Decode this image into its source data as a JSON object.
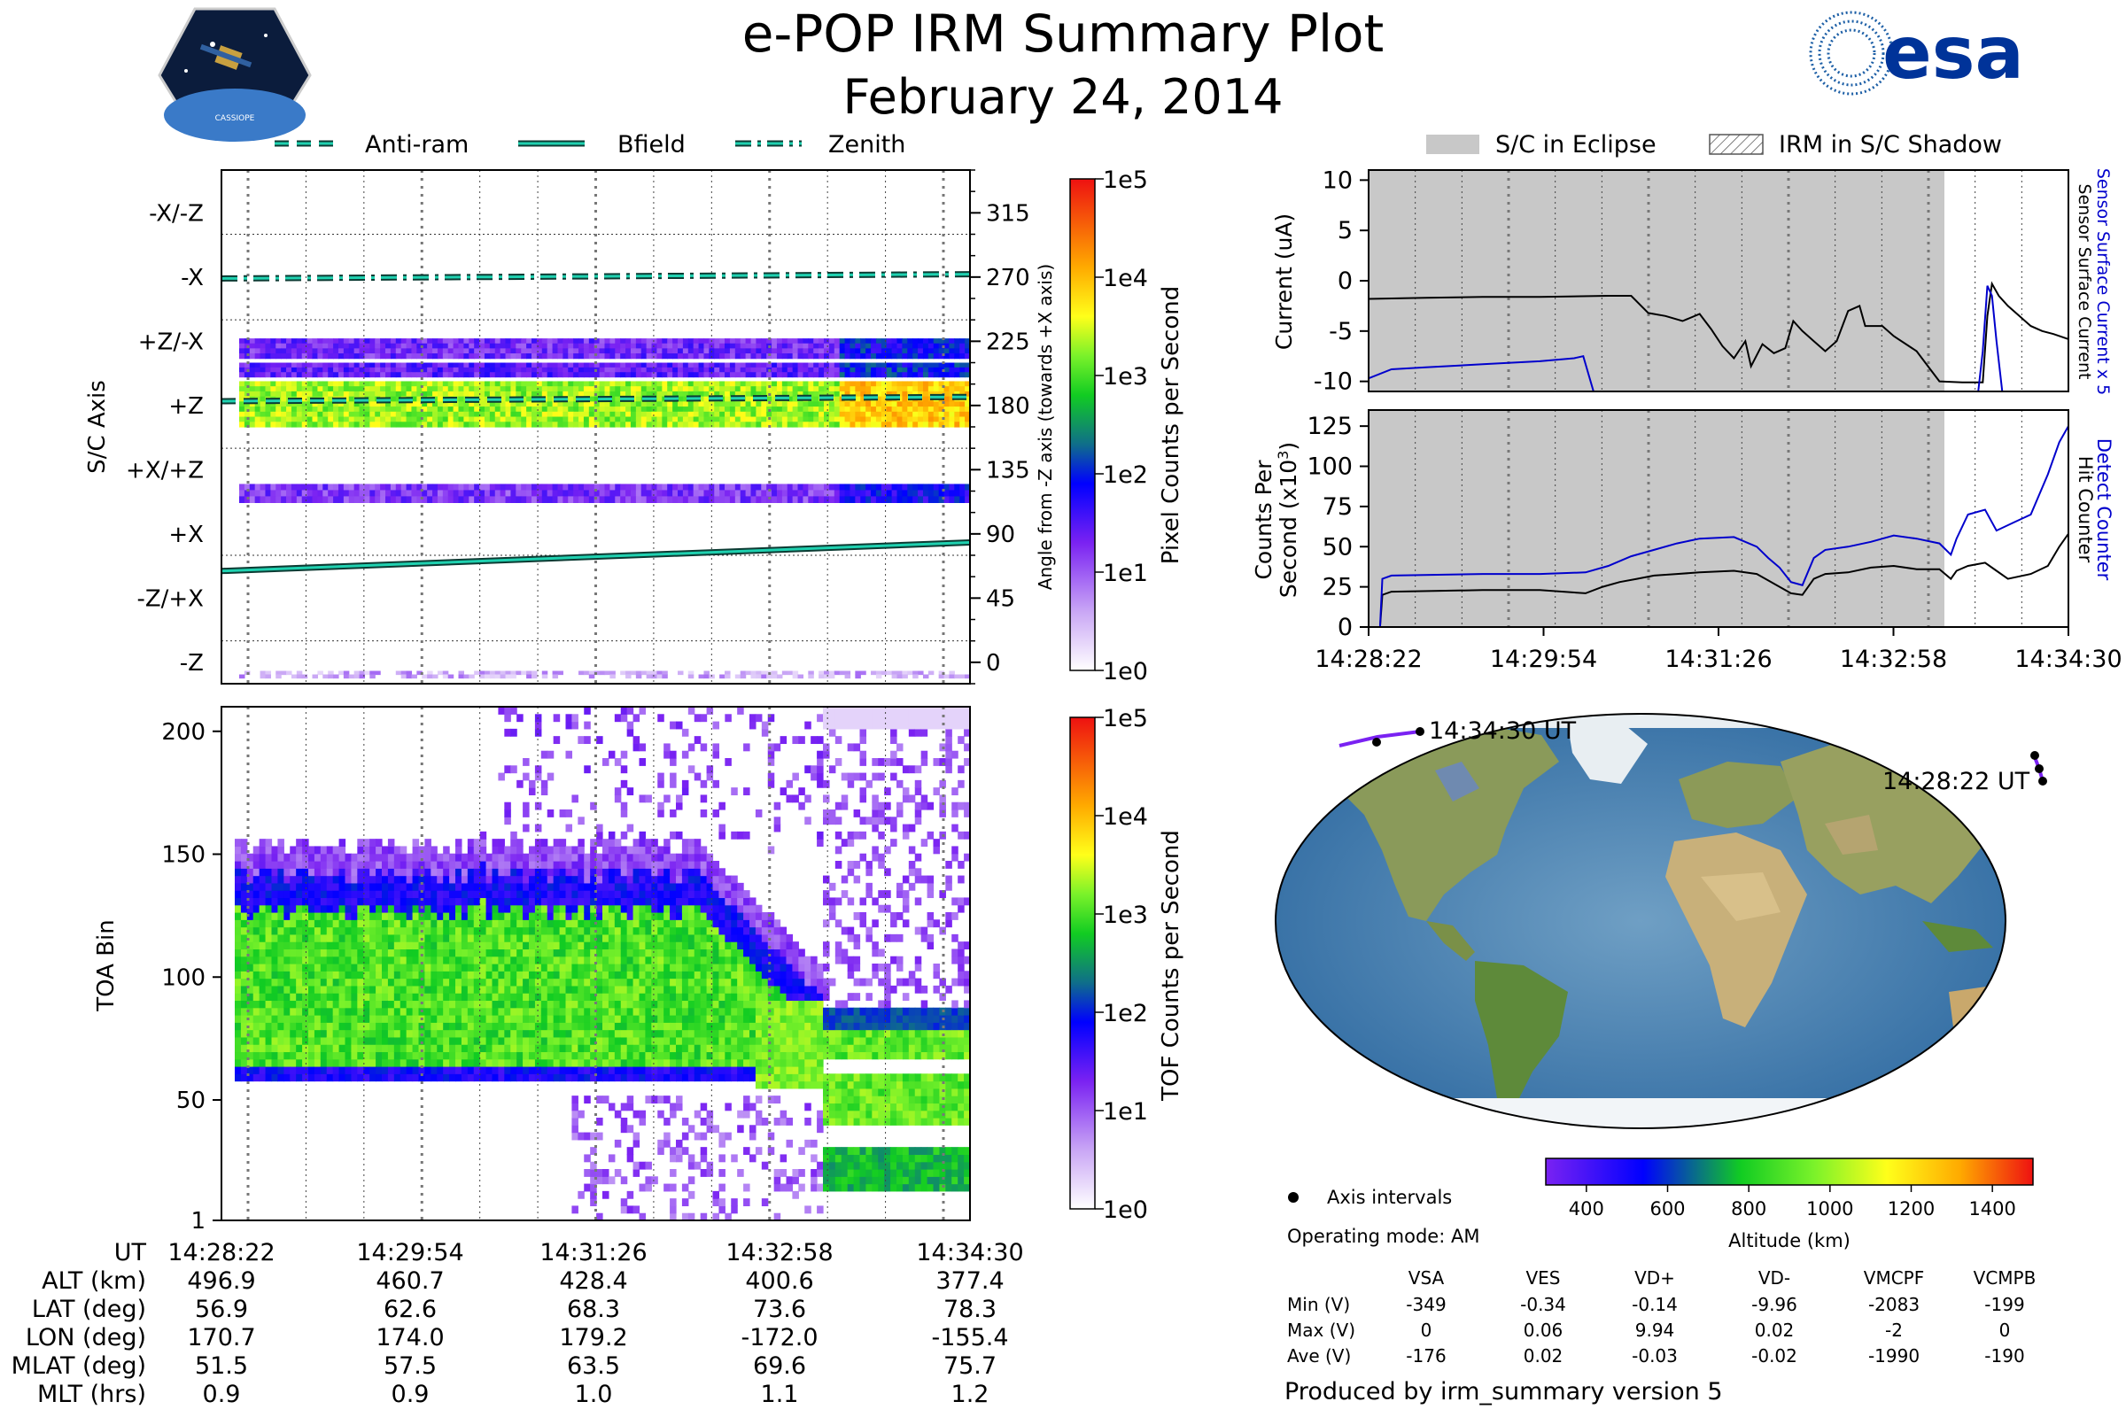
{
  "header": {
    "title": "e-POP IRM Summary Plot",
    "date": "February 24, 2014",
    "mission_badge_text": "CASSIOPE",
    "agency_logo_text": "esa"
  },
  "legends": {
    "lines": [
      "Anti-ram",
      "Bfield",
      "Zenith"
    ],
    "shading": [
      "S/C in Eclipse",
      "IRM in S/C Shadow"
    ],
    "map": "Axis intervals",
    "line_color": "#1fd1b0"
  },
  "time_ticks": [
    "14:28:22",
    "14:29:54",
    "14:31:26",
    "14:32:58",
    "14:34:30"
  ],
  "chart_data": [
    {
      "type": "heatmap",
      "name": "pixel-panel",
      "ylabel": "S/C Axis",
      "ylabel_right": "Angle from -Z axis (towards +X axis)",
      "left_ticks": [
        "-X/-Z",
        "-X",
        "+Z/-X",
        "+Z",
        "+X/+Z",
        "+X",
        "-Z/+X",
        "-Z"
      ],
      "right_ticks": [
        "315",
        "270",
        "225",
        "180",
        "135",
        "90",
        "45",
        "0"
      ],
      "ylim": [
        -15,
        345
      ],
      "bands": [
        {
          "angle_min": 165,
          "angle_max": 197,
          "level": 3.3
        },
        {
          "angle_min": 200,
          "angle_max": 210,
          "level": 1.4
        },
        {
          "angle_min": 213,
          "angle_max": 227,
          "level": 1.3
        },
        {
          "angle_min": 112,
          "angle_max": 125,
          "level": 1.2
        },
        {
          "angle_min": -11,
          "angle_max": -6,
          "level": 0.6
        }
      ],
      "lines": [
        {
          "name": "Zenith",
          "style": "dashdot",
          "values": [
            269,
            272
          ]
        },
        {
          "name": "Anti-ram",
          "style": "dashed",
          "values": [
            183,
            186
          ]
        },
        {
          "name": "Bfield",
          "style": "solid",
          "values": [
            64,
            84
          ]
        }
      ],
      "colorbar": {
        "label": "Pixel Counts per Second",
        "ticks": [
          "1e0",
          "1e1",
          "1e2",
          "1e3",
          "1e4",
          "1e5"
        ]
      }
    },
    {
      "type": "heatmap",
      "name": "toa-panel",
      "ylabel": "TOA Bin",
      "y_ticks": [
        "1",
        "50",
        "100",
        "150",
        "200"
      ],
      "ylim": [
        1,
        210
      ],
      "colorbar": {
        "label": "TOF Counts per Second",
        "ticks": [
          "1e0",
          "1e1",
          "1e2",
          "1e3",
          "1e4",
          "1e5"
        ]
      }
    },
    {
      "type": "line",
      "name": "current-panel",
      "ylabel": "Current (uA)",
      "right_label_1": "Sensor Surface Current x 5",
      "right_label_2": "Sensor Surface Current",
      "y_ticks": [
        "10",
        "5",
        "0",
        "-5",
        "-10"
      ],
      "ylim": [
        -11,
        11
      ],
      "x_minutes": [
        0,
        6.13
      ],
      "series": [
        {
          "name": "Sensor Surface Current",
          "color": "#000000",
          "points": [
            [
              0,
              -1.8
            ],
            [
              0.5,
              -1.7
            ],
            [
              1,
              -1.6
            ],
            [
              1.5,
              -1.6
            ],
            [
              2.1,
              -1.5
            ],
            [
              2.3,
              -1.5
            ],
            [
              2.45,
              -3.2
            ],
            [
              2.6,
              -3.5
            ],
            [
              2.75,
              -4.0
            ],
            [
              2.9,
              -3.3
            ],
            [
              3.0,
              -4.8
            ],
            [
              3.1,
              -6.5
            ],
            [
              3.2,
              -7.7
            ],
            [
              3.3,
              -6.0
            ],
            [
              3.35,
              -8.5
            ],
            [
              3.45,
              -6.3
            ],
            [
              3.55,
              -7.2
            ],
            [
              3.65,
              -6.7
            ],
            [
              3.72,
              -4.0
            ],
            [
              3.8,
              -5.0
            ],
            [
              3.9,
              -6.0
            ],
            [
              4.0,
              -7.0
            ],
            [
              4.1,
              -6.0
            ],
            [
              4.2,
              -3.0
            ],
            [
              4.3,
              -2.5
            ],
            [
              4.35,
              -4.5
            ],
            [
              4.5,
              -4.5
            ],
            [
              4.6,
              -5.5
            ],
            [
              4.8,
              -7.0
            ],
            [
              4.9,
              -8.5
            ],
            [
              5.0,
              -10.0
            ],
            [
              5.2,
              -10.1
            ],
            [
              5.38,
              -10.1
            ],
            [
              5.42,
              -3.5
            ],
            [
              5.46,
              -0.3
            ],
            [
              5.52,
              -1.5
            ],
            [
              5.6,
              -2.5
            ],
            [
              5.7,
              -3.5
            ],
            [
              5.8,
              -4.5
            ],
            [
              5.9,
              -5.0
            ],
            [
              6.0,
              -5.3
            ],
            [
              6.13,
              -5.8
            ]
          ]
        },
        {
          "name": "Sensor Surface Current x 5",
          "color": "#0000cc",
          "points": [
            [
              0,
              -9.7
            ],
            [
              0.2,
              -8.8
            ],
            [
              0.5,
              -8.6
            ],
            [
              1,
              -8.3
            ],
            [
              1.5,
              -8.0
            ],
            [
              1.8,
              -7.7
            ],
            [
              1.88,
              -7.5
            ],
            [
              1.97,
              -11
            ],
            [
              5.34,
              -11
            ],
            [
              5.38,
              -7
            ],
            [
              5.42,
              -0.5
            ],
            [
              5.46,
              -1.5
            ],
            [
              5.5,
              -6
            ],
            [
              5.55,
              -11
            ]
          ]
        }
      ]
    },
    {
      "type": "line",
      "name": "counts-panel",
      "ylabel": "Counts Per",
      "ylabel_2": "Second (x10",
      "ylabel_exp": "3",
      "right_label_1": "Detect Counter",
      "right_label_2": "Hit Counter",
      "y_ticks": [
        "125",
        "100",
        "75",
        "50",
        "25",
        "0"
      ],
      "ylim": [
        0,
        135
      ],
      "x_minutes": [
        0,
        6.13
      ],
      "series": [
        {
          "name": "Hit Counter",
          "color": "#000000",
          "points": [
            [
              0,
              0
            ],
            [
              0.1,
              0
            ],
            [
              0.12,
              20
            ],
            [
              0.2,
              22
            ],
            [
              1,
              23
            ],
            [
              1.5,
              23
            ],
            [
              1.9,
              21
            ],
            [
              2.05,
              25
            ],
            [
              2.2,
              28
            ],
            [
              2.35,
              30
            ],
            [
              2.5,
              32
            ],
            [
              2.7,
              33
            ],
            [
              2.9,
              34
            ],
            [
              3.2,
              35
            ],
            [
              3.4,
              33
            ],
            [
              3.5,
              29
            ],
            [
              3.6,
              25
            ],
            [
              3.7,
              21
            ],
            [
              3.8,
              20
            ],
            [
              3.9,
              30
            ],
            [
              4.0,
              33
            ],
            [
              4.2,
              34
            ],
            [
              4.4,
              37
            ],
            [
              4.6,
              38
            ],
            [
              4.8,
              36
            ],
            [
              5.0,
              36
            ],
            [
              5.1,
              30
            ],
            [
              5.15,
              35
            ],
            [
              5.25,
              38
            ],
            [
              5.4,
              40
            ],
            [
              5.5,
              35
            ],
            [
              5.6,
              30
            ],
            [
              5.8,
              33
            ],
            [
              5.95,
              38
            ],
            [
              6.05,
              50
            ],
            [
              6.13,
              58
            ]
          ]
        },
        {
          "name": "Detect Counter",
          "color": "#0000cc",
          "points": [
            [
              0,
              0
            ],
            [
              0.1,
              0
            ],
            [
              0.12,
              30
            ],
            [
              0.2,
              32
            ],
            [
              1,
              33
            ],
            [
              1.5,
              33
            ],
            [
              1.9,
              34
            ],
            [
              2.1,
              38
            ],
            [
              2.3,
              44
            ],
            [
              2.5,
              48
            ],
            [
              2.7,
              52
            ],
            [
              2.9,
              55
            ],
            [
              3.2,
              56
            ],
            [
              3.4,
              50
            ],
            [
              3.5,
              43
            ],
            [
              3.6,
              37
            ],
            [
              3.7,
              28
            ],
            [
              3.8,
              26
            ],
            [
              3.9,
              43
            ],
            [
              4.0,
              48
            ],
            [
              4.2,
              50
            ],
            [
              4.4,
              53
            ],
            [
              4.6,
              57
            ],
            [
              4.8,
              55
            ],
            [
              5.0,
              52
            ],
            [
              5.1,
              45
            ],
            [
              5.15,
              55
            ],
            [
              5.25,
              70
            ],
            [
              5.4,
              73
            ],
            [
              5.5,
              60
            ],
            [
              5.65,
              65
            ],
            [
              5.8,
              70
            ],
            [
              5.95,
              95
            ],
            [
              6.05,
              115
            ],
            [
              6.13,
              125
            ]
          ]
        }
      ]
    },
    {
      "type": "table",
      "name": "orbit-table",
      "row_labels": [
        "UT",
        "ALT (km)",
        "LAT (deg)",
        "LON (deg)",
        "MLAT (deg)",
        "MLT (hrs)"
      ],
      "rows": [
        [
          "14:28:22",
          "14:29:54",
          "14:31:26",
          "14:32:58",
          "14:34:30"
        ],
        [
          "496.9",
          "460.7",
          "428.4",
          "400.6",
          "377.4"
        ],
        [
          "56.9",
          "62.6",
          "68.3",
          "73.6",
          "78.3"
        ],
        [
          "170.7",
          "174.0",
          "179.2",
          "-172.0",
          "-155.4"
        ],
        [
          "51.5",
          "57.5",
          "63.5",
          "69.6",
          "75.7"
        ],
        [
          "0.9",
          "0.9",
          "1.0",
          "1.1",
          "1.2"
        ]
      ]
    }
  ],
  "map": {
    "start_label": "14:28:22 UT",
    "end_label": "14:34:30 UT",
    "altitude_ticks": [
      "400",
      "600",
      "800",
      "1000",
      "1200",
      "1400"
    ],
    "altitude_range_km": [
      300,
      1500
    ],
    "altitude_label": "Altitude (km)"
  },
  "operating_mode": "Operating mode: AM",
  "voltage_table": {
    "headers": [
      "VSA",
      "VES",
      "VD+",
      "VD-",
      "VMCPF",
      "VCMPB"
    ],
    "rows": [
      {
        "label": "Min (V)",
        "values": [
          "-349",
          "-0.34",
          "-0.14",
          "-9.96",
          "-2083",
          "-199"
        ]
      },
      {
        "label": "Max (V)",
        "values": [
          "0",
          "0.06",
          "9.94",
          "0.02",
          "-2",
          "0"
        ]
      },
      {
        "label": "Ave (V)",
        "values": [
          "-176",
          "0.02",
          "-0.03",
          "-0.02",
          "-1990",
          "-190"
        ]
      }
    ]
  },
  "footer": "Produced by irm_summary version 5"
}
